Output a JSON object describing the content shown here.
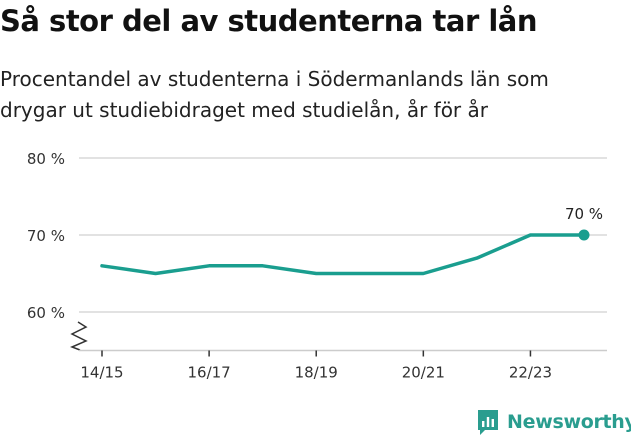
{
  "title": "Så stor del av studenterna tar lån",
  "subtitle_lines": [
    "Procentandel av studenterna i Södermanlands län som",
    "drygar ut studiebidraget med studielån, år för år"
  ],
  "brand": {
    "name": "Newsworthy",
    "icon": "newsworthy-logo-icon",
    "color": "#2a9d8f"
  },
  "chart_data": {
    "type": "line",
    "x": [
      "14/15",
      "15/16",
      "16/17",
      "17/18",
      "18/19",
      "19/20",
      "20/21",
      "21/22",
      "22/23",
      "23/24"
    ],
    "x_tick_labels": [
      "14/15",
      "16/17",
      "18/19",
      "20/21",
      "22/23"
    ],
    "series": [
      {
        "values": [
          66,
          65,
          66,
          66,
          65,
          65,
          65,
          67,
          70,
          70
        ],
        "color": "#1a9e8f"
      }
    ],
    "y_ticks": [
      60,
      70,
      80
    ],
    "y_tick_labels": [
      "60 %",
      "70 %",
      "80 %"
    ],
    "ylim": [
      55,
      80
    ],
    "axis_break": true,
    "grid": true,
    "annotations": [
      {
        "text": "70 %",
        "x": "23/24",
        "y": 70
      }
    ]
  }
}
